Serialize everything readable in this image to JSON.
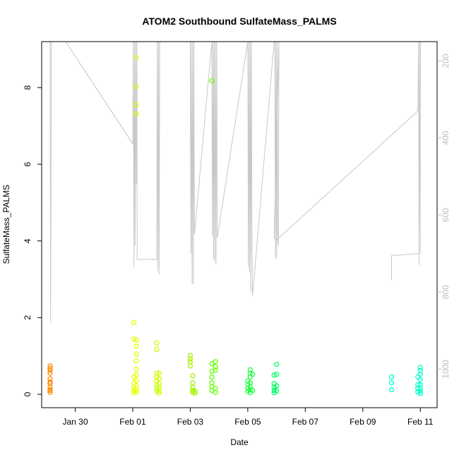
{
  "chart_data": {
    "type": "scatter",
    "title": "ATOM2 Southbound SulfateMass_PALMS",
    "xlabel": "Date",
    "ylabel": "SulfateMass_PALMS",
    "xlim": [
      "2017-01-28T20:00",
      "2017-02-11T14:00"
    ],
    "ylim": [
      -0.35,
      9.2
    ],
    "yticks": [
      "0",
      "2",
      "4",
      "6",
      "8"
    ],
    "xticks": [
      "Jan 30",
      "Feb 01",
      "Feb 03",
      "Feb 05",
      "Feb 07",
      "Feb 09",
      "Feb 11"
    ],
    "xtick_dates": [
      "2017-01-30",
      "2017-02-01",
      "2017-02-03",
      "2017-02-05",
      "2017-02-07",
      "2017-02-09",
      "2017-02-11"
    ],
    "y2lim": [
      1100,
      150
    ],
    "y2ticks": [
      "200",
      "400",
      "600",
      "800",
      "1000"
    ],
    "grid": false,
    "legend": "none",
    "colors": {
      "altitude_trace": "#c8c8c8",
      "axis": "#000000",
      "secondary_axis": "#bdbdbd",
      "flight_colors": [
        "#ff8c00",
        "#e6ff00",
        "#ccff00",
        "#a6f200",
        "#66ff00",
        "#22ff44",
        "#00ff99",
        "#00ffcc"
      ]
    },
    "series": [
      {
        "color": "#ff8c00",
        "points": [
          [
            "2017-01-29T03:00",
            0.05
          ],
          [
            "2017-01-29T03:00",
            0.1
          ],
          [
            "2017-01-29T03:00",
            0.18
          ],
          [
            "2017-01-29T03:00",
            0.28
          ],
          [
            "2017-01-29T03:00",
            0.4
          ],
          [
            "2017-01-29T03:00",
            0.55
          ],
          [
            "2017-01-29T03:00",
            0.68
          ],
          [
            "2017-01-29T03:05",
            0.74
          ],
          [
            "2017-01-29T03:05",
            0.12
          ],
          [
            "2017-01-29T03:05",
            0.32
          ],
          [
            "2017-01-29T03:05",
            0.62
          ]
        ]
      },
      {
        "color": "#e6ff00",
        "points": [
          [
            "2017-02-01T01:00",
            1.87
          ],
          [
            "2017-02-01T01:00",
            1.44
          ],
          [
            "2017-02-01T01:00",
            0.45
          ],
          [
            "2017-02-01T01:00",
            0.3
          ],
          [
            "2017-02-01T01:00",
            0.18
          ],
          [
            "2017-02-01T01:00",
            0.1
          ],
          [
            "2017-02-01T01:00",
            0.04
          ],
          [
            "2017-02-01T03:00",
            8.78
          ],
          [
            "2017-02-01T03:00",
            8.03
          ],
          [
            "2017-02-01T03:00",
            7.55
          ],
          [
            "2017-02-01T03:00",
            7.31
          ],
          [
            "2017-02-01T03:00",
            1.41
          ],
          [
            "2017-02-01T03:00",
            1.25
          ],
          [
            "2017-02-01T03:00",
            1.05
          ],
          [
            "2017-02-01T03:00",
            0.87
          ],
          [
            "2017-02-01T03:00",
            0.65
          ],
          [
            "2017-02-01T03:00",
            0.5
          ],
          [
            "2017-02-01T03:00",
            0.35
          ],
          [
            "2017-02-01T03:00",
            0.22
          ],
          [
            "2017-02-01T03:00",
            0.12
          ],
          [
            "2017-02-01T03:00",
            0.05
          ]
        ]
      },
      {
        "color": "#ccff00",
        "points": [
          [
            "2017-02-01T20:00",
            1.34
          ],
          [
            "2017-02-01T20:00",
            1.17
          ],
          [
            "2017-02-01T20:00",
            0.55
          ],
          [
            "2017-02-01T20:00",
            0.45
          ],
          [
            "2017-02-01T20:00",
            0.35
          ],
          [
            "2017-02-01T20:00",
            0.25
          ],
          [
            "2017-02-01T20:00",
            0.15
          ],
          [
            "2017-02-01T20:00",
            0.08
          ],
          [
            "2017-02-01T22:00",
            0.55
          ],
          [
            "2017-02-01T22:00",
            0.4
          ],
          [
            "2017-02-01T22:00",
            0.28
          ],
          [
            "2017-02-01T22:00",
            0.18
          ],
          [
            "2017-02-01T22:00",
            0.09
          ],
          [
            "2017-02-01T22:00",
            0.03
          ]
        ]
      },
      {
        "color": "#a6f200",
        "points": [
          [
            "2017-02-03T00:00",
            1.01
          ],
          [
            "2017-02-03T00:00",
            0.92
          ],
          [
            "2017-02-03T00:00",
            0.85
          ],
          [
            "2017-02-03T00:00",
            0.74
          ],
          [
            "2017-02-03T02:00",
            0.48
          ],
          [
            "2017-02-03T02:00",
            0.3
          ],
          [
            "2017-02-03T02:00",
            0.18
          ],
          [
            "2017-02-03T02:00",
            0.1
          ],
          [
            "2017-02-03T02:00",
            0.05
          ],
          [
            "2017-02-03T04:00",
            0.08
          ],
          [
            "2017-02-03T04:00",
            0.03
          ]
        ]
      },
      {
        "color": "#66ff00",
        "points": [
          [
            "2017-02-03T18:00",
            8.18
          ],
          [
            "2017-02-03T18:00",
            0.8
          ],
          [
            "2017-02-03T18:00",
            0.6
          ],
          [
            "2017-02-03T18:00",
            0.45
          ],
          [
            "2017-02-03T18:00",
            0.3
          ],
          [
            "2017-02-03T18:00",
            0.2
          ],
          [
            "2017-02-03T18:00",
            0.1
          ],
          [
            "2017-02-03T21:00",
            0.85
          ],
          [
            "2017-02-03T21:00",
            0.72
          ],
          [
            "2017-02-03T21:00",
            0.63
          ],
          [
            "2017-02-03T21:00",
            0.15
          ],
          [
            "2017-02-03T21:00",
            0.05
          ]
        ]
      },
      {
        "color": "#22ff44",
        "points": [
          [
            "2017-02-05T00:00",
            0.35
          ],
          [
            "2017-02-05T00:00",
            0.25
          ],
          [
            "2017-02-05T00:00",
            0.15
          ],
          [
            "2017-02-05T00:00",
            0.08
          ],
          [
            "2017-02-05T02:00",
            0.64
          ],
          [
            "2017-02-05T02:00",
            0.55
          ],
          [
            "2017-02-05T02:00",
            0.45
          ],
          [
            "2017-02-05T02:00",
            0.3
          ],
          [
            "2017-02-05T02:00",
            0.2
          ],
          [
            "2017-02-05T02:00",
            0.12
          ],
          [
            "2017-02-05T02:00",
            0.04
          ],
          [
            "2017-02-05T04:00",
            0.52
          ],
          [
            "2017-02-05T04:00",
            0.1
          ]
        ]
      },
      {
        "color": "#00ff66",
        "points": [
          [
            "2017-02-05T22:00",
            0.5
          ],
          [
            "2017-02-05T22:00",
            0.28
          ],
          [
            "2017-02-05T22:00",
            0.18
          ],
          [
            "2017-02-05T22:00",
            0.1
          ],
          [
            "2017-02-05T22:00",
            0.04
          ],
          [
            "2017-02-06T00:00",
            0.78
          ],
          [
            "2017-02-06T00:00",
            0.52
          ],
          [
            "2017-02-06T00:00",
            0.22
          ],
          [
            "2017-02-06T00:00",
            0.08
          ]
        ]
      },
      {
        "color": "#00ffcc",
        "points": [
          [
            "2017-02-10T00:00",
            0.45
          ],
          [
            "2017-02-10T00:00",
            0.3
          ],
          [
            "2017-02-10T00:00",
            0.12
          ],
          [
            "2017-02-10T22:00",
            0.45
          ],
          [
            "2017-02-10T22:00",
            0.25
          ],
          [
            "2017-02-10T22:00",
            0.15
          ],
          [
            "2017-02-10T22:00",
            0.06
          ],
          [
            "2017-02-11T00:00",
            0.7
          ],
          [
            "2017-02-11T00:00",
            0.62
          ],
          [
            "2017-02-11T00:00",
            0.52
          ],
          [
            "2017-02-11T00:00",
            0.38
          ],
          [
            "2017-02-11T00:00",
            0.25
          ],
          [
            "2017-02-11T00:00",
            0.15
          ],
          [
            "2017-02-11T00:00",
            0.08
          ],
          [
            "2017-02-11T00:00",
            0.02
          ]
        ]
      }
    ],
    "altitude_trace": [
      [
        "2017-01-29T03:00",
        115
      ],
      [
        "2017-01-29T03:00",
        240
      ],
      [
        "2017-01-29T03:30",
        880
      ],
      [
        "2017-01-29T04:00",
        115
      ],
      [
        "2017-01-29T16:00",
        115
      ],
      [
        "2017-02-01T00:00",
        415
      ],
      [
        "2017-02-01T00:30",
        115
      ],
      [
        "2017-02-01T01:00",
        735
      ],
      [
        "2017-02-01T01:30",
        115
      ],
      [
        "2017-02-01T02:00",
        680
      ],
      [
        "2017-02-01T02:30",
        115
      ],
      [
        "2017-02-01T03:00",
        520
      ],
      [
        "2017-02-01T03:30",
        115
      ],
      [
        "2017-02-01T03:40",
        715
      ],
      [
        "2017-02-01T20:00",
        715
      ],
      [
        "2017-02-01T20:30",
        115
      ],
      [
        "2017-02-01T21:00",
        745
      ],
      [
        "2017-02-01T21:30",
        115
      ],
      [
        "2017-02-01T22:00",
        755
      ],
      [
        "2017-02-01T22:30",
        115
      ],
      [
        "2017-02-03T00:00",
        115
      ],
      [
        "2017-02-03T00:30",
        700
      ],
      [
        "2017-02-03T01:00",
        115
      ],
      [
        "2017-02-03T01:30",
        780
      ],
      [
        "2017-02-03T02:00",
        115
      ],
      [
        "2017-02-03T02:30",
        780
      ],
      [
        "2017-02-03T03:00",
        115
      ],
      [
        "2017-02-03T03:30",
        650
      ],
      [
        "2017-02-03T18:00",
        115
      ],
      [
        "2017-02-03T18:30",
        655
      ],
      [
        "2017-02-03T19:00",
        115
      ],
      [
        "2017-02-03T19:30",
        715
      ],
      [
        "2017-02-03T20:00",
        115
      ],
      [
        "2017-02-03T20:30",
        720
      ],
      [
        "2017-02-03T21:00",
        115
      ],
      [
        "2017-02-03T21:30",
        730
      ],
      [
        "2017-02-03T22:00",
        115
      ],
      [
        "2017-02-03T22:30",
        660
      ],
      [
        "2017-02-05T00:00",
        115
      ],
      [
        "2017-02-05T00:30",
        735
      ],
      [
        "2017-02-05T01:00",
        115
      ],
      [
        "2017-02-05T01:30",
        750
      ],
      [
        "2017-02-05T02:00",
        115
      ],
      [
        "2017-02-05T02:30",
        800
      ],
      [
        "2017-02-05T03:00",
        115
      ],
      [
        "2017-02-05T03:30",
        670
      ],
      [
        "2017-02-05T04:00",
        810
      ],
      [
        "2017-02-05T22:00",
        130
      ],
      [
        "2017-02-05T22:30",
        115
      ],
      [
        "2017-02-05T23:00",
        710
      ],
      [
        "2017-02-05T23:30",
        115
      ],
      [
        "2017-02-06T00:00",
        715
      ],
      [
        "2017-02-06T00:30",
        115
      ],
      [
        "2017-02-06T01:00",
        670
      ],
      [
        "2017-02-06T01:00",
        665
      ],
      [
        "2017-02-06T01:30",
        680
      ],
      [
        "2017-02-06T02:00",
        130
      ],
      [
        "2017-02-05T22:00",
        660
      ],
      [
        "2017-02-06T00:00",
        665
      ],
      [
        "2017-02-06T00:00",
        665
      ],
      [
        "2017-02-10T22:00",
        330
      ],
      [
        "2017-02-10T22:30",
        115
      ],
      [
        "2017-02-10T23:00",
        730
      ],
      [
        "2017-02-10T23:30",
        115
      ],
      [
        "2017-02-11T00:00",
        700
      ],
      [
        "2017-02-11T00:00",
        690
      ],
      [
        "2017-02-11T00:00",
        115
      ]
    ],
    "altitude_trace_2": [
      [
        "2017-02-10T00:00",
        770
      ],
      [
        "2017-02-10T00:00",
        705
      ],
      [
        "2017-02-10T23:00",
        700
      ]
    ]
  }
}
